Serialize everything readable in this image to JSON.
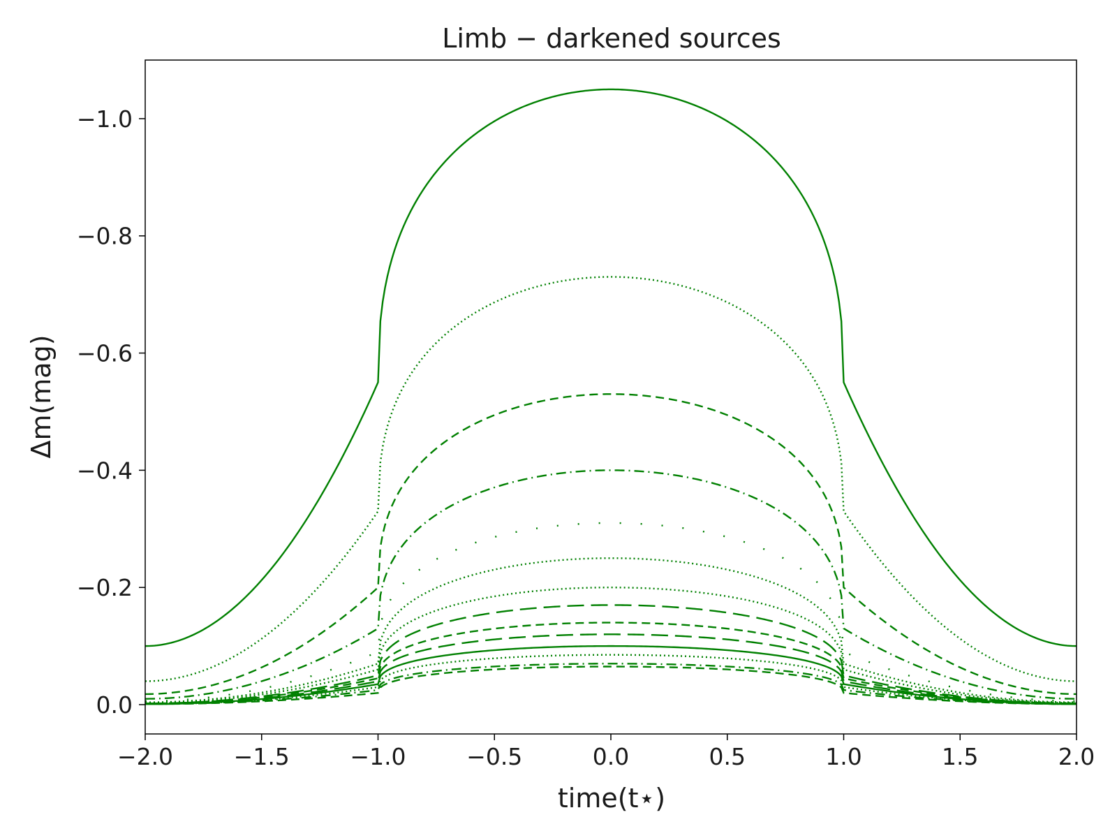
{
  "chart_data": {
    "type": "line",
    "title": "Limb − darkened sources",
    "xlabel": "time(t⋆)",
    "ylabel": "Δm(mag)",
    "xlim": [
      -2.0,
      2.0
    ],
    "ylim": [
      0.05,
      -1.1
    ],
    "y_inverted": true,
    "grid": false,
    "legend": "none",
    "color": "#008000",
    "x_ticks": [
      -2.0,
      -1.5,
      -1.0,
      -0.5,
      0.0,
      0.5,
      1.0,
      1.5,
      2.0
    ],
    "x_tick_labels": [
      "−2.0",
      "−1.5",
      "−1.0",
      "−0.5",
      "0.0",
      "0.5",
      "1.0",
      "1.5",
      "2.0"
    ],
    "y_ticks": [
      0.0,
      -0.2,
      -0.4,
      -0.6,
      -0.8,
      -1.0
    ],
    "y_tick_labels": [
      "0.0",
      "−0.2",
      "−0.4",
      "−0.6",
      "−0.8",
      "−1.0"
    ],
    "series": [
      {
        "style": "solid",
        "peak": -1.05,
        "edge": -0.55,
        "wing": -0.1
      },
      {
        "style": "dotted",
        "peak": -0.73,
        "edge": -0.33,
        "wing": -0.04
      },
      {
        "style": "dashed",
        "peak": -0.53,
        "edge": -0.2,
        "wing": -0.018
      },
      {
        "style": "dashdot",
        "peak": -0.4,
        "edge": -0.13,
        "wing": -0.01
      },
      {
        "style": "sparse-dotted",
        "peak": -0.31,
        "edge": -0.09,
        "wing": -0.006
      },
      {
        "style": "dotted",
        "peak": -0.25,
        "edge": -0.07,
        "wing": -0.004
      },
      {
        "style": "dotted",
        "peak": -0.2,
        "edge": -0.06,
        "wing": -0.003
      },
      {
        "style": "longdash",
        "peak": -0.17,
        "edge": -0.05,
        "wing": -0.002
      },
      {
        "style": "dashed",
        "peak": -0.14,
        "edge": -0.045,
        "wing": -0.002
      },
      {
        "style": "longdash",
        "peak": -0.12,
        "edge": -0.04,
        "wing": -0.001
      },
      {
        "style": "solid",
        "peak": -0.1,
        "edge": -0.035,
        "wing": -0.001
      },
      {
        "style": "dotted",
        "peak": -0.085,
        "edge": -0.03,
        "wing": -0.001
      },
      {
        "style": "dashdot",
        "peak": -0.07,
        "edge": -0.025,
        "wing": -0.001
      },
      {
        "style": "dashed",
        "peak": -0.065,
        "edge": -0.02,
        "wing": -0.001
      }
    ]
  }
}
